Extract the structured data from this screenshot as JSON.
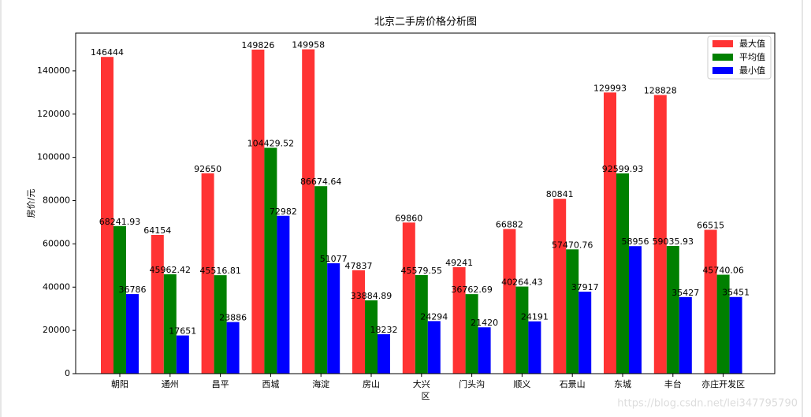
{
  "chart_data": {
    "type": "bar",
    "title": "北京二手房价格分析图",
    "x_label": "区",
    "y_label": "房价/元",
    "categories": [
      "朝阳",
      "通州",
      "昌平",
      "西城",
      "海淀",
      "房山",
      "大兴",
      "门头沟",
      "顺义",
      "石景山",
      "东城",
      "丰台",
      "亦庄开发区"
    ],
    "series": [
      {
        "name": "最大值",
        "color": "#ff3333",
        "values": [
          146444,
          64154,
          92650,
          149826,
          149958,
          47837,
          69860,
          49241,
          66882,
          80841,
          129993,
          128828,
          66515
        ]
      },
      {
        "name": "平均值",
        "color": "#008000",
        "values": [
          68241.93,
          45962.42,
          45516.81,
          104429.52,
          86674.64,
          33884.89,
          45579.55,
          36762.69,
          40264.43,
          57470.76,
          92599.93,
          59035.93,
          45740.06
        ]
      },
      {
        "name": "最小值",
        "color": "#0000ff",
        "values": [
          36786,
          17651,
          23886,
          72982,
          51077,
          18232,
          24294,
          21420,
          24191,
          37917,
          58956,
          35427,
          35451
        ]
      }
    ],
    "ylim": [
      0,
      157456
    ],
    "yticks": [
      0,
      20000,
      40000,
      60000,
      80000,
      100000,
      120000,
      140000
    ],
    "legend": "upper right",
    "grid": false,
    "watermark": "https://blog.csdn.net/lei347795790"
  }
}
